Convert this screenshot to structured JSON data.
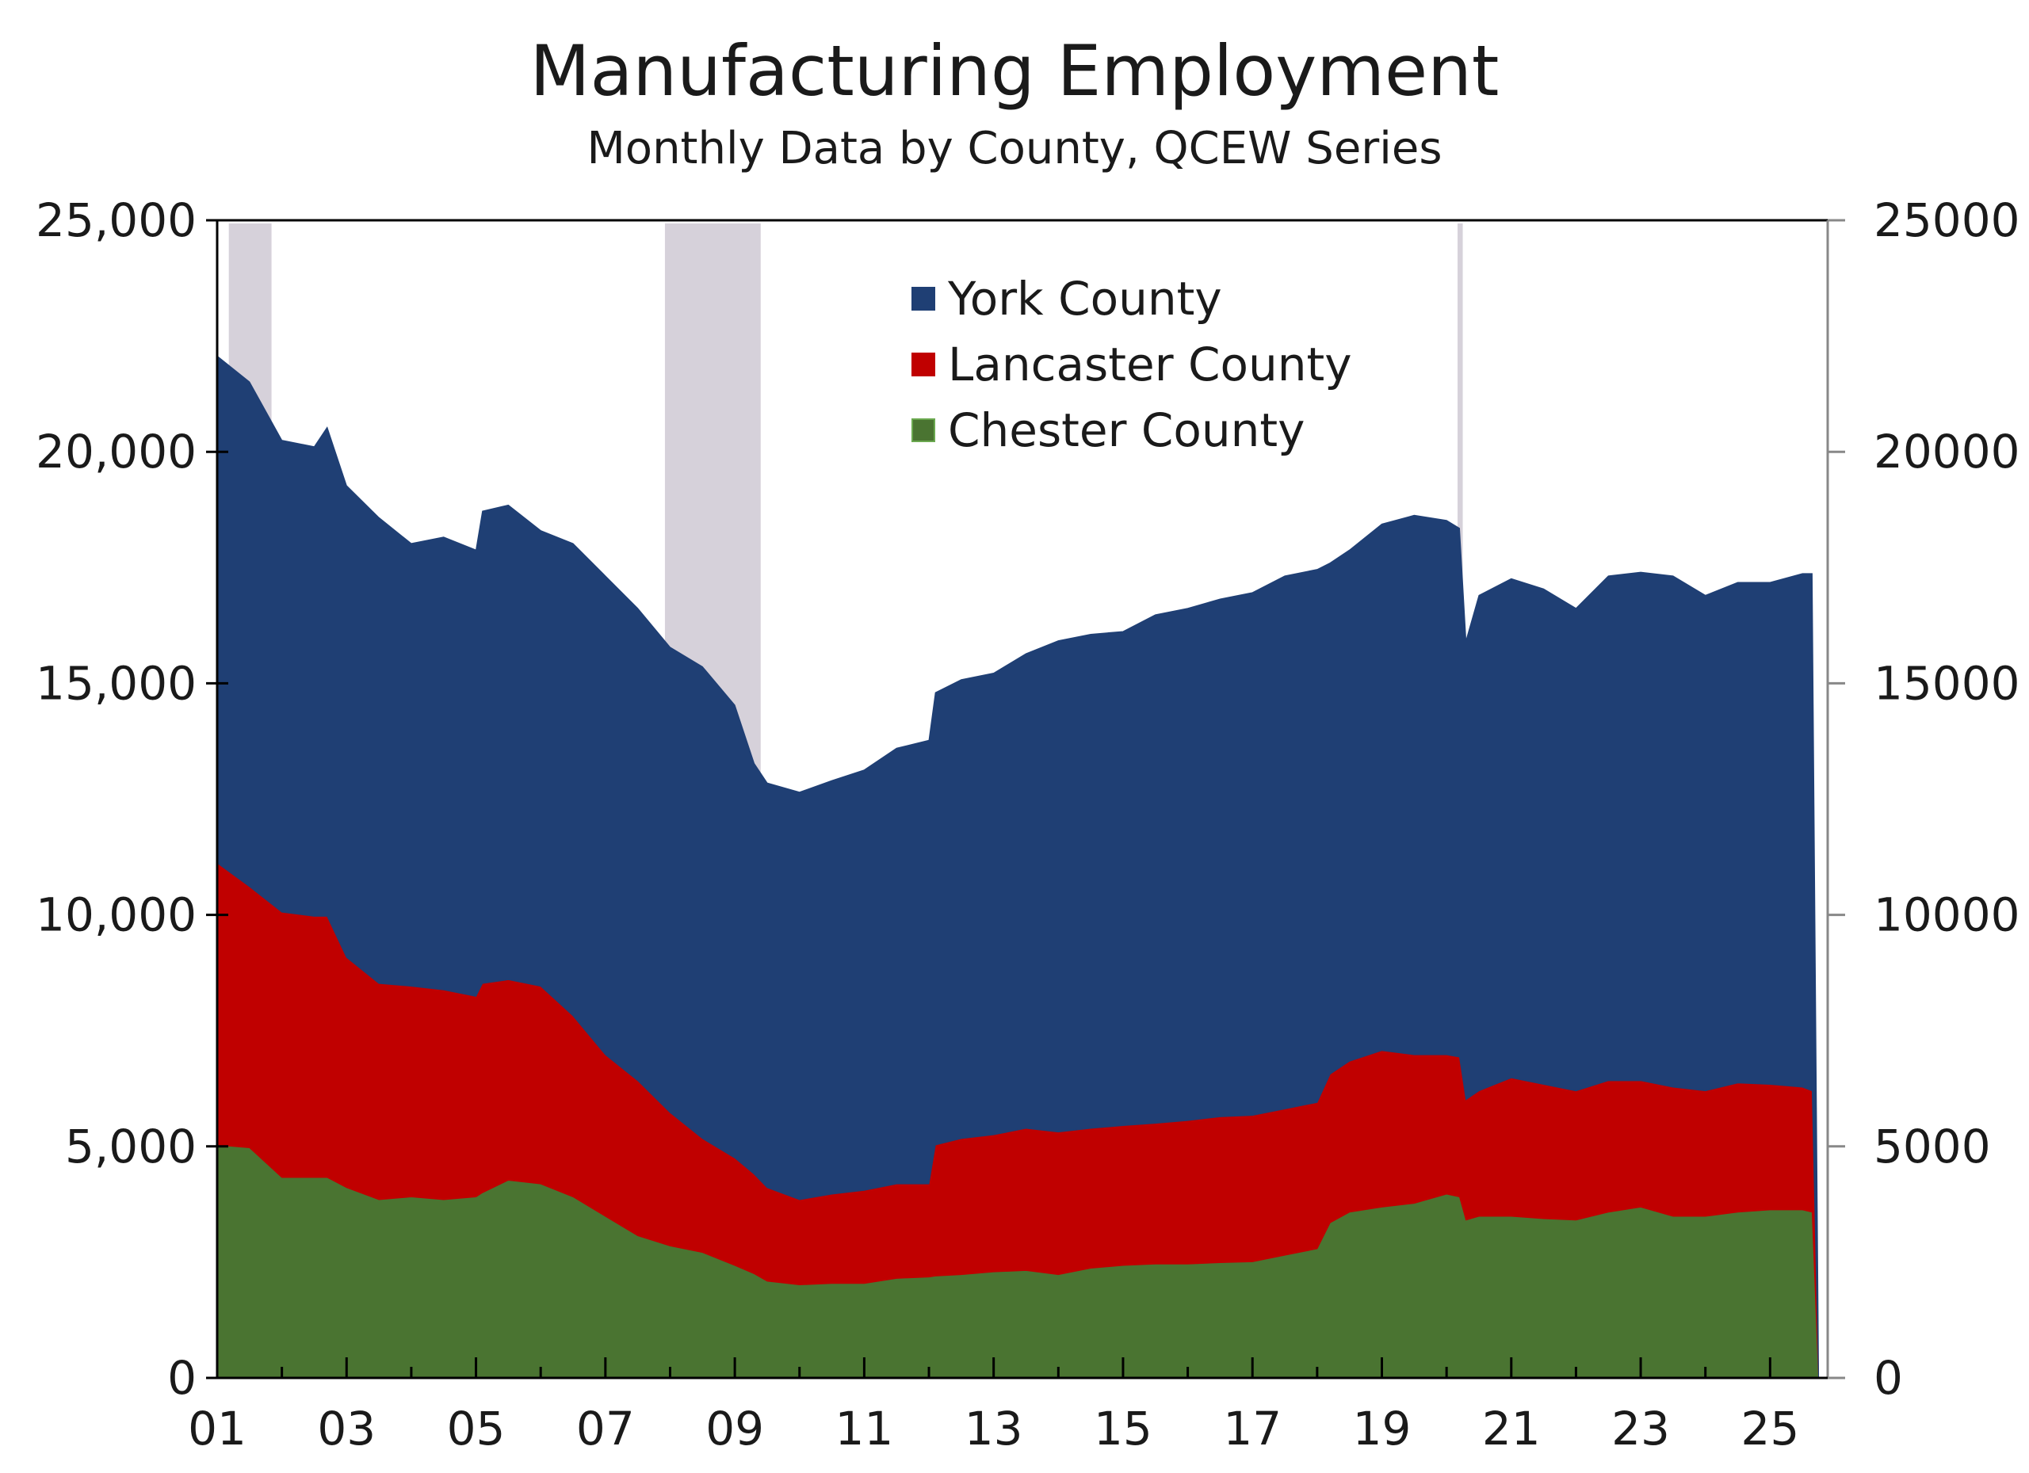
{
  "chart_data": {
    "type": "area",
    "stacked": true,
    "title": "Manufacturing Employment",
    "subtitle": "Monthly Data by County, QCEW Series",
    "xlabel": "",
    "ylabel": "",
    "xlim": [
      2001.0,
      2025.89
    ],
    "ylim": [
      0,
      25000
    ],
    "x_ticks": [
      2001,
      2003,
      2005,
      2007,
      2009,
      2011,
      2013,
      2015,
      2017,
      2019,
      2021,
      2023,
      2025
    ],
    "x_tick_labels": [
      "01",
      "03",
      "05",
      "07",
      "09",
      "11",
      "13",
      "15",
      "17",
      "19",
      "21",
      "23",
      "25"
    ],
    "y_ticks": [
      0,
      5000,
      10000,
      15000,
      20000,
      25000
    ],
    "y_tick_labels_left": [
      "0",
      "5,000",
      "10,000",
      "15,000",
      "20,000",
      "25,000"
    ],
    "y_tick_labels_right": [
      "0",
      "5000",
      "10000",
      "15000",
      "20000",
      "25000"
    ],
    "legend_position": "top-center",
    "recessions": [
      [
        2001.18,
        2001.84
      ],
      [
        2007.92,
        2009.4
      ],
      [
        2020.17,
        2020.25
      ]
    ],
    "x": [
      2001.0,
      2001.5,
      2002.0,
      2002.5,
      2002.7,
      2003.0,
      2003.5,
      2004.0,
      2004.5,
      2005.0,
      2005.1,
      2005.5,
      2006.0,
      2006.5,
      2007.0,
      2007.5,
      2008.0,
      2008.5,
      2009.0,
      2009.3,
      2009.5,
      2010.0,
      2010.5,
      2011.0,
      2011.5,
      2012.0,
      2012.1,
      2012.5,
      2013.0,
      2013.5,
      2014.0,
      2014.5,
      2015.0,
      2015.5,
      2016.0,
      2016.5,
      2017.0,
      2017.5,
      2018.0,
      2018.2,
      2018.5,
      2019.0,
      2019.5,
      2020.0,
      2020.2,
      2020.3,
      2020.5,
      2021.0,
      2021.5,
      2022.0,
      2022.5,
      2023.0,
      2023.5,
      2024.0,
      2024.5,
      2025.0,
      2025.5,
      2025.65,
      2025.75
    ],
    "series": [
      {
        "name": "Chester County",
        "color": "#4a7431",
        "values": [
          5030,
          4970,
          4330,
          4330,
          4330,
          4110,
          3850,
          3910,
          3850,
          3910,
          4000,
          4270,
          4190,
          3910,
          3490,
          3070,
          2850,
          2710,
          2430,
          2250,
          2090,
          2010,
          2040,
          2040,
          2150,
          2180,
          2200,
          2230,
          2290,
          2320,
          2230,
          2370,
          2430,
          2460,
          2460,
          2490,
          2510,
          2650,
          2790,
          3350,
          3580,
          3690,
          3770,
          3970,
          3910,
          3410,
          3490,
          3490,
          3440,
          3410,
          3580,
          3690,
          3490,
          3490,
          3580,
          3630,
          3630,
          3580,
          0
        ]
      },
      {
        "name": "Lancaster County",
        "color": "#c00000",
        "values": [
          6090,
          5640,
          5730,
          5640,
          5640,
          4970,
          4670,
          4550,
          4530,
          4330,
          4520,
          4330,
          4270,
          3910,
          3490,
          3350,
          2880,
          2460,
          2320,
          2150,
          2020,
          1840,
          1930,
          2010,
          2040,
          2010,
          2830,
          2940,
          2960,
          3070,
          3080,
          3020,
          3020,
          3040,
          3100,
          3150,
          3160,
          3160,
          3160,
          3210,
          3260,
          3380,
          3210,
          3010,
          3020,
          2600,
          2710,
          2990,
          2900,
          2790,
          2840,
          2730,
          2790,
          2710,
          2790,
          2710,
          2650,
          2620,
          0
        ]
      },
      {
        "name": "York County",
        "color": "#1f3f74",
        "values": [
          10950,
          10900,
          10190,
          10140,
          10560,
          10190,
          10060,
          9560,
          9780,
          9640,
          10200,
          10250,
          9840,
          10200,
          10340,
          10200,
          10050,
          10190,
          9780,
          8870,
          8740,
          8800,
          8930,
          9080,
          9410,
          9580,
          9770,
          9910,
          9970,
          10250,
          10610,
          10670,
          10670,
          10980,
          11060,
          11180,
          11290,
          11510,
          11510,
          11040,
          11040,
          11370,
          11650,
          11540,
          11420,
          9910,
          10700,
          10780,
          10700,
          10420,
          10900,
          10980,
          11040,
          10700,
          10810,
          10840,
          11090,
          11170,
          0
        ]
      }
    ],
    "legend": [
      "York County",
      "Lancaster County",
      "Chester County"
    ],
    "recession_color": "#d6d1da"
  }
}
